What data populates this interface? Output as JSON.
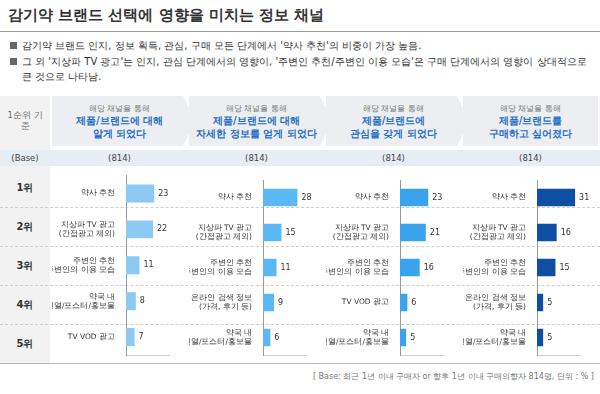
{
  "title": "감기약 브랜드 선택에 영향을 미치는 정보 채널",
  "bullets": [
    "감기약 브랜드 인지, 정보 획득, 관심, 구매 모든 단계에서 '약사 추천'의 비중이 가장 높음.",
    "그 외 '지상파 TV 광고'는 인지, 관심 단계에서의 영향이, '주변인 추천/주변인 이용 모습'은 구매 단계에서의 영향이 상대적으로 큰 것으로 나타남."
  ],
  "row_header": "1순위 기준",
  "base_label": "(Base)",
  "ranks": [
    "1위",
    "2위",
    "3위",
    "4위",
    "5위"
  ],
  "footnote": "[ Base: 최근 1년 이내 구매자 or 향후 1년 이내 구매의향자 814명, 단위 : % ]",
  "chart_data": [
    {
      "type": "bar",
      "orientation": "horizontal",
      "lead": "해당 채널을 통해",
      "title": [
        "제품/브랜드에 대해",
        "알게 되었다"
      ],
      "base": "(814)",
      "categories": [
        [
          "약사 추천"
        ],
        [
          "지상파 TV 광고",
          "(간접광고 제외)"
        ],
        [
          "주변인 추천",
          "/주변인의 이용 모습"
        ],
        [
          "약국 내",
          "진열/포스터/홍보물"
        ],
        [
          "TV VOD 광고"
        ]
      ],
      "values": [
        23,
        22,
        11,
        8,
        7
      ],
      "color": "#8ccaf3",
      "xlim": [
        0,
        35
      ],
      "grid": false,
      "data_labels": true,
      "tick_labels": "y"
    },
    {
      "type": "bar",
      "orientation": "horizontal",
      "lead": "해당 채널을 통해",
      "title": [
        "제품/브랜드에 대해",
        "자세한 정보를 얻게 되었다"
      ],
      "base": "(814)",
      "categories": [
        [
          "약사 추천"
        ],
        [
          "지상파 TV 광고",
          "(간접광고 제외)"
        ],
        [
          "주변인 추천",
          "/주변인의 이용 모습"
        ],
        [
          "온라인 검색 정보",
          "(가격, 후기 등)"
        ],
        [
          "약국 내",
          "진열/포스터/홍보물"
        ]
      ],
      "values": [
        28,
        15,
        11,
        9,
        6
      ],
      "color": "#5ab8f5",
      "xlim": [
        0,
        35
      ],
      "grid": false,
      "data_labels": true,
      "tick_labels": "y"
    },
    {
      "type": "bar",
      "orientation": "horizontal",
      "lead": "해당 채널을 통해",
      "title": [
        "제품/브랜드에",
        "관심을 갖게 되었다"
      ],
      "base": "(814)",
      "categories": [
        [
          "약사 추천"
        ],
        [
          "지상파 TV 광고",
          "(간접광고 제외)"
        ],
        [
          "주변인 추천",
          "/주변인의 이용 모습"
        ],
        [
          "TV VOD 광고"
        ],
        [
          "약국 내",
          "진열/포스터/홍보물"
        ]
      ],
      "values": [
        23,
        21,
        16,
        6,
        5
      ],
      "color": "#3aa3ee",
      "xlim": [
        0,
        35
      ],
      "grid": false,
      "data_labels": true,
      "tick_labels": "y"
    },
    {
      "type": "bar",
      "orientation": "horizontal",
      "lead": "해당 채널을 통해",
      "title": [
        "제품/브랜드를",
        "구매하고 싶어졌다"
      ],
      "base": "(814)",
      "categories": [
        [
          "약사 추천"
        ],
        [
          "지상파 TV 광고",
          "(간접광고 제외)"
        ],
        [
          "주변인 추천",
          "/주변인의 이용 모습"
        ],
        [
          "온라인 검색 정보",
          "(가격, 후기 등)"
        ],
        [
          "약국 내",
          "진열/포스터/홍보물"
        ]
      ],
      "values": [
        31,
        16,
        15,
        5,
        5
      ],
      "color": "#0f4fa3",
      "xlim": [
        0,
        35
      ],
      "grid": false,
      "data_labels": true,
      "tick_labels": "y"
    }
  ]
}
